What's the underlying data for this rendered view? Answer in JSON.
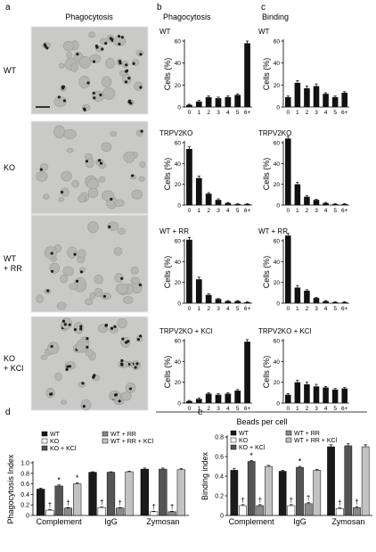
{
  "panel_letters": [
    "a",
    "b",
    "c",
    "d",
    "e"
  ],
  "micrograph": {
    "title": "Phagocytosis",
    "row_labels": [
      [
        "WT"
      ],
      [
        "KO"
      ],
      [
        "WT",
        "+ RR"
      ],
      [
        "KO",
        "+ KCl"
      ]
    ]
  },
  "shared_xlabel": "Beads per cell",
  "chart_data": [
    {
      "id": "b-wt",
      "type": "bar",
      "column_title": "Phagocytosis",
      "panel_label": "WT",
      "categories": [
        "0",
        "1",
        "2",
        "3",
        "4",
        "5",
        "6+"
      ],
      "values": [
        2,
        5,
        9,
        8,
        9,
        11,
        58
      ],
      "errors": [
        0.5,
        1,
        1,
        1,
        1,
        1,
        2
      ],
      "ylabel": "Cells (%)",
      "ylim": [
        0,
        60
      ],
      "yticks": [
        0,
        20,
        40,
        60
      ]
    },
    {
      "id": "b-ko",
      "type": "bar",
      "panel_label": "TRPV2KO",
      "categories": [
        "0",
        "1",
        "2",
        "3",
        "4",
        "5",
        "6+"
      ],
      "values": [
        54,
        26,
        11,
        5,
        2,
        1,
        1
      ],
      "errors": [
        2,
        2,
        1,
        1,
        0.5,
        0.5,
        0.5
      ],
      "ylabel": "Cells (%)",
      "ylim": [
        0,
        60
      ],
      "yticks": [
        0,
        20,
        40,
        60
      ]
    },
    {
      "id": "b-rr",
      "type": "bar",
      "panel_label": "WT + RR",
      "categories": [
        "0",
        "1",
        "2",
        "3",
        "4",
        "5",
        "6+"
      ],
      "values": [
        61,
        23,
        8,
        4,
        2,
        2,
        1
      ],
      "errors": [
        2,
        2,
        1,
        0.5,
        0.5,
        0.5,
        0.5
      ],
      "ylabel": "Cells (%)",
      "ylim": [
        0,
        60
      ],
      "yticks": [
        0,
        20,
        40,
        60
      ]
    },
    {
      "id": "b-kcl",
      "type": "bar",
      "panel_label": "TRPV2KO + KCl",
      "categories": [
        "0",
        "1",
        "2",
        "3",
        "4",
        "5",
        "6+"
      ],
      "values": [
        2,
        4,
        9,
        8,
        9,
        12,
        59
      ],
      "errors": [
        0.5,
        1,
        1,
        1,
        1,
        1,
        2
      ],
      "ylabel": "Cells (%)",
      "ylim": [
        0,
        60
      ],
      "yticks": [
        0,
        20,
        40,
        60
      ]
    },
    {
      "id": "c-wt",
      "type": "bar",
      "column_title": "Binding",
      "panel_label": "WT",
      "categories": [
        "0",
        "1",
        "2",
        "3",
        "4",
        "5",
        "6+"
      ],
      "values": [
        9,
        22,
        17,
        19,
        12,
        9,
        13
      ],
      "errors": [
        1,
        2,
        2,
        2,
        1,
        1,
        1
      ],
      "ylabel": "Cells (%)",
      "ylim": [
        0,
        60
      ],
      "yticks": [
        0,
        20,
        40,
        60
      ]
    },
    {
      "id": "c-ko",
      "type": "bar",
      "panel_label": "TRPV2KO",
      "categories": [
        "0",
        "1",
        "2",
        "3",
        "4",
        "5",
        "6+"
      ],
      "values": [
        64,
        20,
        8,
        5,
        2,
        1,
        1
      ],
      "errors": [
        2,
        2,
        1,
        0.5,
        0.5,
        0.5,
        0.5
      ],
      "ylabel": "Cells (%)",
      "ylim": [
        0,
        60
      ],
      "yticks": [
        0,
        20,
        40,
        60
      ]
    },
    {
      "id": "c-rr",
      "type": "bar",
      "panel_label": "WT + RR",
      "categories": [
        "0",
        "1",
        "2",
        "3",
        "4",
        "5",
        "6+"
      ],
      "values": [
        65,
        15,
        12,
        5,
        2,
        1,
        1
      ],
      "errors": [
        2,
        2,
        1,
        0.5,
        0.5,
        0.5,
        0.5
      ],
      "ylabel": "Cells (%)",
      "ylim": [
        0,
        60
      ],
      "yticks": [
        0,
        20,
        40,
        60
      ]
    },
    {
      "id": "c-kcl",
      "type": "bar",
      "panel_label": "TRPV2KO + KCl",
      "categories": [
        "0",
        "1",
        "2",
        "3",
        "4",
        "5",
        "6+"
      ],
      "values": [
        8,
        20,
        18,
        16,
        15,
        13,
        14
      ],
      "errors": [
        1,
        2,
        2,
        2,
        1,
        1,
        1
      ],
      "ylabel": "Cells (%)",
      "ylim": [
        0,
        60
      ],
      "yticks": [
        0,
        20,
        40,
        60
      ]
    },
    {
      "id": "d",
      "type": "bar",
      "grouped": true,
      "ylabel": "Phagocytosis Index",
      "ylim": [
        0,
        1.0
      ],
      "yticks": [
        0,
        0.2,
        0.4,
        0.6,
        0.8,
        1.0
      ],
      "ytick_labels": [
        "0",
        "0.2",
        "0.4",
        "0.6",
        "0.8",
        "1.0"
      ],
      "categories": [
        "Complement",
        "IgG",
        "Zymosan"
      ],
      "series": [
        {
          "name": "WT",
          "color": "#1a1a1a",
          "values": [
            0.5,
            0.82,
            0.88
          ],
          "errors": [
            0.02,
            0.01,
            0.02
          ]
        },
        {
          "name": "KO",
          "color": "#ffffff",
          "values": [
            0.1,
            0.15,
            0.07
          ],
          "errors": [
            0.01,
            0.01,
            0.01
          ]
        },
        {
          "name": "KO + KCl",
          "color": "#555555",
          "values": [
            0.56,
            0.82,
            0.88
          ],
          "errors": [
            0.02,
            0.01,
            0.02
          ]
        },
        {
          "name": "WT + RR",
          "color": "#8a8a8a",
          "values": [
            0.14,
            0.14,
            0.07
          ],
          "errors": [
            0.01,
            0.01,
            0.01
          ]
        },
        {
          "name": "WT + RR + KCl",
          "color": "#c2c2c2",
          "values": [
            0.6,
            0.83,
            0.87
          ],
          "errors": [
            0.02,
            0.01,
            0.02
          ]
        }
      ],
      "annotations": [
        {
          "category": 0,
          "series": 1,
          "mark": "†"
        },
        {
          "category": 0,
          "series": 2,
          "mark": "*"
        },
        {
          "category": 0,
          "series": 3,
          "mark": "†"
        },
        {
          "category": 0,
          "series": 4,
          "mark": "*"
        },
        {
          "category": 1,
          "series": 1,
          "mark": "†"
        },
        {
          "category": 1,
          "series": 3,
          "mark": "†"
        },
        {
          "category": 2,
          "series": 1,
          "mark": "†"
        },
        {
          "category": 2,
          "series": 3,
          "mark": "†"
        }
      ]
    },
    {
      "id": "e",
      "type": "bar",
      "grouped": true,
      "ylabel": "Binding index",
      "ylim": [
        0,
        0.8
      ],
      "yticks": [
        0,
        0.2,
        0.4,
        0.6,
        0.8
      ],
      "ytick_labels": [
        "0",
        "0.2",
        "0.4",
        "0.6",
        "0.8"
      ],
      "categories": [
        "Complement",
        "IgG",
        "Zymosan"
      ],
      "series": [
        {
          "name": "WT",
          "color": "#1a1a1a",
          "values": [
            0.46,
            0.45,
            0.7
          ],
          "errors": [
            0.02,
            0.01,
            0.02
          ]
        },
        {
          "name": "KO",
          "color": "#ffffff",
          "values": [
            0.1,
            0.1,
            0.07
          ],
          "errors": [
            0.01,
            0.01,
            0.01
          ]
        },
        {
          "name": "KO + KCl",
          "color": "#555555",
          "values": [
            0.55,
            0.49,
            0.71
          ],
          "errors": [
            0.01,
            0.01,
            0.02
          ]
        },
        {
          "name": "WT + RR",
          "color": "#8a8a8a",
          "values": [
            0.1,
            0.12,
            0.08
          ],
          "errors": [
            0.01,
            0.01,
            0.01
          ]
        },
        {
          "name": "WT + RR + KCl",
          "color": "#c2c2c2",
          "values": [
            0.5,
            0.46,
            0.7
          ],
          "errors": [
            0.01,
            0.01,
            0.02
          ]
        }
      ],
      "annotations": [
        {
          "category": 0,
          "series": 1,
          "mark": "†"
        },
        {
          "category": 0,
          "series": 2,
          "mark": "*"
        },
        {
          "category": 0,
          "series": 3,
          "mark": "†"
        },
        {
          "category": 1,
          "series": 1,
          "mark": "†"
        },
        {
          "category": 1,
          "series": 2,
          "mark": "*"
        },
        {
          "category": 1,
          "series": 3,
          "mark": "†"
        },
        {
          "category": 2,
          "series": 1,
          "mark": "†"
        },
        {
          "category": 2,
          "series": 3,
          "mark": "†"
        }
      ]
    }
  ]
}
